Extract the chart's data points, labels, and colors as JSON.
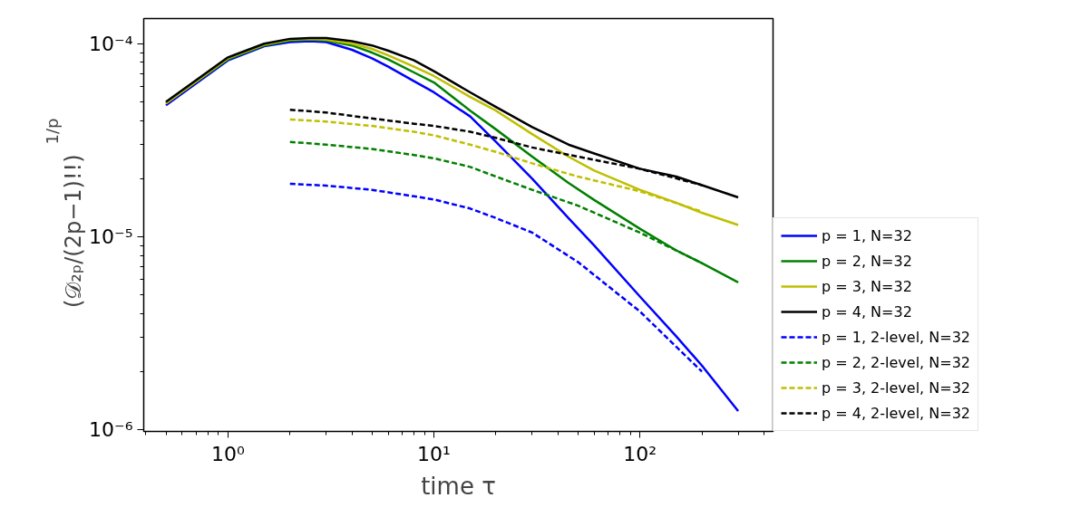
{
  "chart_data": {
    "type": "line",
    "xlabel": "time τ",
    "ylabel": "(𝒟₂ₚ/(2p−1)!!)$^{1/p}$",
    "log": "xy",
    "grid": false,
    "legend": "right",
    "marker": "none",
    "xlim": [
      0.39,
      443
    ],
    "ylim": [
      9.8e-07,
      0.000135
    ],
    "xticks": [
      {
        "value": 1,
        "label": "10⁰"
      },
      {
        "value": 10,
        "label": "10¹"
      },
      {
        "value": 100,
        "label": "10²"
      }
    ],
    "yticks": [
      {
        "value": 1e-06,
        "label": "10⁻⁶"
      },
      {
        "value": 1e-05,
        "label": "10⁻⁵"
      },
      {
        "value": 0.0001,
        "label": "10⁻⁴"
      }
    ],
    "x": [
      0.5,
      1,
      1.5,
      2,
      2.5,
      3,
      4,
      5,
      6,
      8,
      10,
      15,
      20,
      30,
      45,
      60,
      100,
      150,
      200,
      300
    ],
    "series": [
      {
        "name": "p = 1, N=32",
        "color": "#0000ff",
        "line_style": "solid",
        "values": [
          4.8e-05,
          8.2e-05,
          9.7e-05,
          0.000102,
          0.000103,
          0.000102,
          9.3e-05,
          8.4e-05,
          7.6e-05,
          6.4e-05,
          5.6e-05,
          4.2e-05,
          3.1e-05,
          2e-05,
          1.25e-05,
          9e-06,
          4.9e-06,
          3.05e-06,
          2.15e-06,
          1.25e-06
        ]
      },
      {
        "name": "p = 2, N=32",
        "color": "#008000",
        "line_style": "solid",
        "values": [
          4.9e-05,
          8.3e-05,
          9.8e-05,
          0.000104,
          0.000105,
          0.000104,
          9.8e-05,
          9e-05,
          8.3e-05,
          7.1e-05,
          6.3e-05,
          4.5e-05,
          3.6e-05,
          2.6e-05,
          1.9e-05,
          1.55e-05,
          1.1e-05,
          8.5e-06,
          7.3e-06,
          5.8e-06
        ]
      },
      {
        "name": "p = 3, N=32",
        "color": "#bfbf00",
        "line_style": "solid",
        "values": [
          4.9e-05,
          8.4e-05,
          9.9e-05,
          0.000105,
          0.000106,
          0.000105,
          0.0001,
          9.4e-05,
          8.7e-05,
          7.6e-05,
          6.8e-05,
          5.3e-05,
          4.5e-05,
          3.4e-05,
          2.6e-05,
          2.2e-05,
          1.75e-05,
          1.5e-05,
          1.33e-05,
          1.15e-05
        ]
      },
      {
        "name": "p = 4, N=32",
        "color": "#000000",
        "line_style": "solid",
        "values": [
          5e-05,
          8.5e-05,
          0.0001,
          0.000106,
          0.000107,
          0.000107,
          0.000103,
          9.8e-05,
          9.2e-05,
          8.2e-05,
          7.2e-05,
          5.6e-05,
          4.7e-05,
          3.7e-05,
          3e-05,
          2.7e-05,
          2.25e-05,
          2.05e-05,
          1.85e-05,
          1.6e-05
        ]
      },
      {
        "name": "p = 1, 2-level, N=32",
        "color": "#0000ff",
        "line_style": "dashed",
        "x": [
          2,
          3,
          5,
          8,
          10,
          15,
          20,
          30,
          50,
          100,
          200
        ],
        "values": [
          1.88e-05,
          1.84e-05,
          1.75e-05,
          1.62e-05,
          1.56e-05,
          1.4e-05,
          1.25e-05,
          1.05e-05,
          7.4e-06,
          4.1e-06,
          2e-06
        ]
      },
      {
        "name": "p = 2, 2-level, N=32",
        "color": "#008000",
        "line_style": "dashed",
        "x": [
          2,
          3,
          5,
          8,
          10,
          15,
          20,
          30,
          50,
          100,
          200
        ],
        "values": [
          3.1e-05,
          3e-05,
          2.85e-05,
          2.65e-05,
          2.55e-05,
          2.3e-05,
          2.05e-05,
          1.75e-05,
          1.45e-05,
          1.05e-05,
          7.3e-06
        ]
      },
      {
        "name": "p = 3, 2-level, N=32",
        "color": "#bfbf00",
        "line_style": "dashed",
        "x": [
          2,
          3,
          5,
          8,
          10,
          15,
          20,
          30,
          50,
          100,
          200
        ],
        "values": [
          4.05e-05,
          3.95e-05,
          3.75e-05,
          3.5e-05,
          3.35e-05,
          3e-05,
          2.75e-05,
          2.4e-05,
          2.05e-05,
          1.72e-05,
          1.35e-05
        ]
      },
      {
        "name": "p = 4, 2-level, N=32",
        "color": "#000000",
        "line_style": "dashed",
        "x": [
          2,
          3,
          5,
          8,
          10,
          15,
          20,
          30,
          50,
          100,
          200
        ],
        "values": [
          4.55e-05,
          4.4e-05,
          4.1e-05,
          3.85e-05,
          3.75e-05,
          3.5e-05,
          3.25e-05,
          2.9e-05,
          2.6e-05,
          2.25e-05,
          1.85e-05
        ]
      }
    ]
  }
}
